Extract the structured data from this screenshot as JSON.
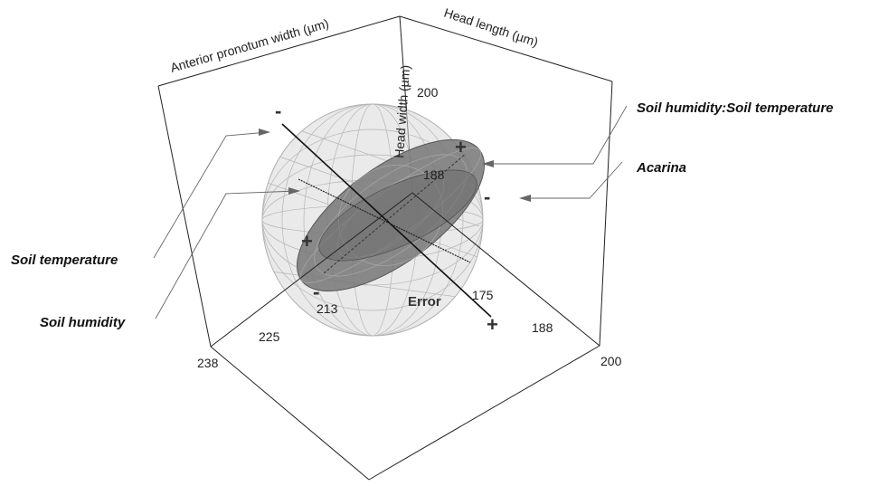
{
  "axes": {
    "x_title": "Anterior pronotum width (µm)",
    "y_title": "Head length (µm)",
    "z_title": "Head width (µm)",
    "x_ticks": [
      "238",
      "225",
      "213"
    ],
    "y_ticks": [
      "175",
      "188",
      "200"
    ],
    "z_ticks": [
      "188",
      "200"
    ]
  },
  "labels": {
    "interaction": "Soil humidity:Soil temperature",
    "acarina": "Acarina",
    "soil_temperature": "Soil temperature",
    "soil_humidity": "Soil humidity",
    "error": "Error"
  },
  "signs": {
    "plus": "+",
    "minus": "-"
  },
  "colors": {
    "hypothesis_ellipsoid": "#7a7a7a",
    "error_ellipsoid": "#d9d9d9",
    "box": "#222222"
  }
}
